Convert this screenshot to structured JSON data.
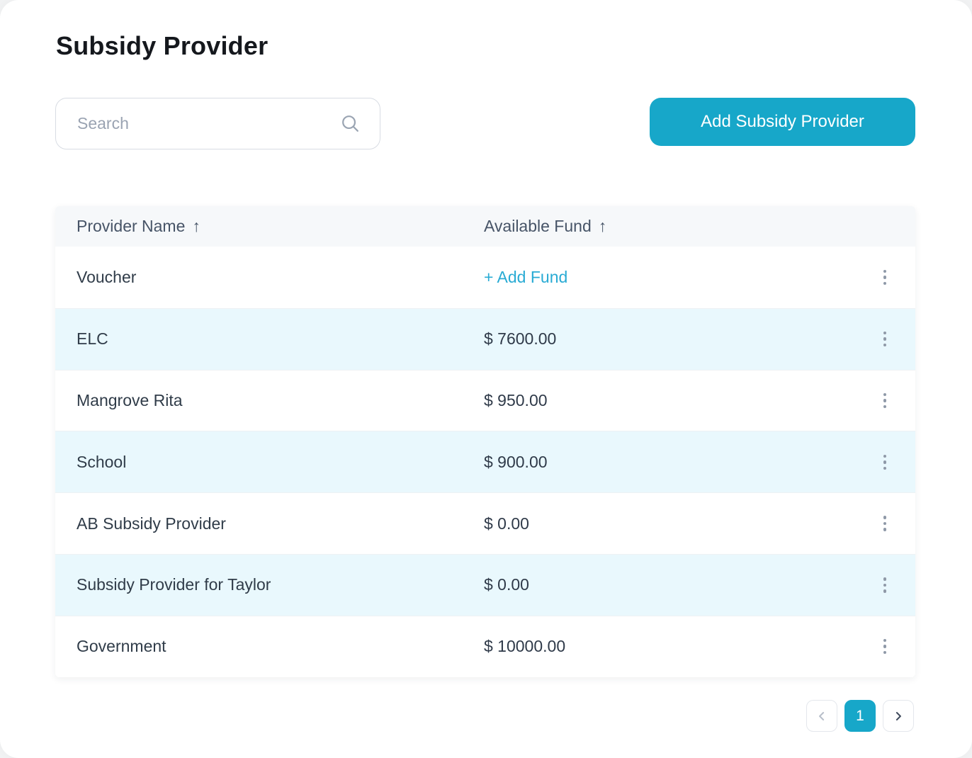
{
  "page": {
    "title": "Subsidy Provider"
  },
  "toolbar": {
    "search_placeholder": "Search",
    "search_value": "",
    "add_button_label": "Add Subsidy Provider"
  },
  "table": {
    "columns": [
      {
        "label": "Provider Name",
        "sort_icon": "↑",
        "sort": "asc"
      },
      {
        "label": "Available Fund",
        "sort_icon": "↑",
        "sort": "asc"
      }
    ],
    "rows": [
      {
        "name": "Voucher",
        "add_fund": "+ Add Fund"
      },
      {
        "name": "ELC",
        "fund": "$ 7600.00"
      },
      {
        "name": "Mangrove Rita",
        "fund": "$ 950.00"
      },
      {
        "name": "School",
        "fund": "$ 900.00"
      },
      {
        "name": "AB Subsidy Provider",
        "fund": "$ 0.00"
      },
      {
        "name": "Subsidy Provider for Taylor",
        "fund": "$ 0.00"
      },
      {
        "name": "Government",
        "fund": "$ 10000.00"
      }
    ]
  },
  "pagination": {
    "current_page": "1"
  },
  "icons": {
    "search": "magnifier",
    "sort": "arrow-up",
    "prev": "chevron-left",
    "next": "chevron-right",
    "row_menu": "kebab-vertical"
  },
  "colors": {
    "accent": "#17a7c9",
    "row_alt": "#e9f8fd",
    "add_fund_link": "#29abd4"
  }
}
